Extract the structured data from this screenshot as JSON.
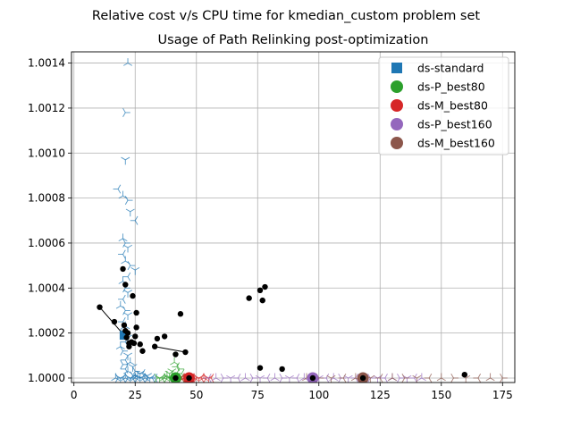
{
  "chart_data": {
    "type": "scatter",
    "title": "Relative cost v/s CPU time for kmedian_custom problem set",
    "subtitle": "Usage of Path Relinking post-optimization",
    "xlabel": "",
    "ylabel": "",
    "xlim": [
      -1,
      180
    ],
    "ylim": [
      0.99998,
      1.00145
    ],
    "xticks": [
      {
        "value": 0,
        "label": "0"
      },
      {
        "value": 25,
        "label": "25"
      },
      {
        "value": 50,
        "label": "50"
      },
      {
        "value": 75,
        "label": "75"
      },
      {
        "value": 100,
        "label": "100"
      },
      {
        "value": 125,
        "label": "125"
      },
      {
        "value": 150,
        "label": "150"
      },
      {
        "value": 175,
        "label": "175"
      }
    ],
    "yticks": [
      {
        "value": 1.0,
        "label": "1.0000"
      },
      {
        "value": 1.0002,
        "label": "1.0002"
      },
      {
        "value": 1.0004,
        "label": "1.0004"
      },
      {
        "value": 1.0006,
        "label": "1.0006"
      },
      {
        "value": 1.0008,
        "label": "1.0008"
      },
      {
        "value": 1.001,
        "label": "1.0010"
      },
      {
        "value": 1.0012,
        "label": "1.0012"
      },
      {
        "value": 1.0014,
        "label": "1.0014"
      }
    ],
    "grid": true,
    "legend_position": "top-right",
    "legend": [
      {
        "name": "ds-standard",
        "color": "#1f77b4",
        "marker": "square"
      },
      {
        "name": "ds-P_best80",
        "color": "#2ca02c",
        "marker": "circle"
      },
      {
        "name": "ds-M_best80",
        "color": "#d62728",
        "marker": "circle"
      },
      {
        "name": "ds-P_best160",
        "color": "#9467bd",
        "marker": "circle"
      },
      {
        "name": "ds-M_best160",
        "color": "#8c564b",
        "marker": "circle"
      }
    ],
    "series": [
      {
        "name": "ds-standard",
        "color": "#1f77b4",
        "marker": "tri",
        "mean": [
          20.5,
          1.00019
        ],
        "points": [
          [
            22,
            1.0014
          ],
          [
            21,
            1.00118
          ],
          [
            21,
            1.00097
          ],
          [
            18,
            1.00084
          ],
          [
            20,
            1.00081
          ],
          [
            22,
            1.00079
          ],
          [
            23,
            1.00074
          ],
          [
            25,
            1.0007
          ],
          [
            20,
            1.00062
          ],
          [
            21,
            1.0006
          ],
          [
            22,
            1.00058
          ],
          [
            20,
            1.00055
          ],
          [
            21,
            1.00052
          ],
          [
            23,
            1.0005
          ],
          [
            25,
            1.00048
          ],
          [
            22,
            1.00045
          ],
          [
            20,
            1.00043
          ],
          [
            21,
            1.0004
          ],
          [
            22,
            1.00038
          ],
          [
            20,
            1.00035
          ],
          [
            19,
            1.00032
          ],
          [
            21,
            1.0003
          ],
          [
            22,
            1.00028
          ],
          [
            20,
            1.00025
          ],
          [
            21,
            1.00023
          ],
          [
            20,
            1.0002
          ],
          [
            22,
            1.00018
          ],
          [
            21,
            1.00016
          ],
          [
            19,
            1.00014
          ],
          [
            20,
            1.00012
          ],
          [
            22,
            1.0001
          ],
          [
            21,
            1.00008
          ],
          [
            23,
            1.00007
          ],
          [
            20,
            1.00006
          ],
          [
            24,
            1.00005
          ],
          [
            21,
            1.00004
          ],
          [
            22,
            1.00003
          ],
          [
            25,
            1.00003
          ],
          [
            27,
            1.00002
          ],
          [
            28,
            1.00002
          ],
          [
            17,
            1.0
          ],
          [
            18,
            1.0
          ],
          [
            19,
            1.0
          ],
          [
            20,
            1.0
          ],
          [
            21,
            1.0
          ],
          [
            22,
            1.0
          ],
          [
            23,
            1.0
          ],
          [
            24,
            1.0
          ],
          [
            25,
            1.0
          ],
          [
            26,
            1.0
          ],
          [
            27,
            1.0
          ],
          [
            28,
            1.0
          ],
          [
            29,
            1.0
          ],
          [
            30,
            1.0
          ],
          [
            31,
            1.0
          ],
          [
            32,
            1.0
          ],
          [
            26,
            1.00001
          ],
          [
            24,
            1.00001
          ],
          [
            30,
            1.00001
          ],
          [
            33,
            1.0
          ]
        ]
      },
      {
        "name": "ds-P_best80",
        "color": "#2ca02c",
        "marker": "tri",
        "mean": [
          41.5,
          1.0
        ],
        "points": [
          [
            34,
            1.0
          ],
          [
            35,
            1.0
          ],
          [
            36,
            1.0
          ],
          [
            37,
            1.0
          ],
          [
            38,
            1.0
          ],
          [
            39,
            1.0
          ],
          [
            40,
            1.0
          ],
          [
            41,
            1.0
          ],
          [
            42,
            1.0
          ],
          [
            43,
            1.0
          ],
          [
            44,
            1.0
          ],
          [
            45,
            1.0
          ],
          [
            46,
            1.0
          ],
          [
            40,
            1.00003
          ],
          [
            42,
            1.00005
          ],
          [
            41,
            1.00007
          ],
          [
            43,
            1.00004
          ],
          [
            39,
            1.00002
          ],
          [
            44,
            1.00002
          ],
          [
            38,
            1.00001
          ]
        ]
      },
      {
        "name": "ds-M_best80",
        "color": "#d62728",
        "marker": "tri",
        "mean": [
          47,
          1.0
        ],
        "points": [
          [
            43,
            1.0
          ],
          [
            44,
            1.0
          ],
          [
            45,
            1.0
          ],
          [
            46,
            1.0
          ],
          [
            47,
            1.0
          ],
          [
            48,
            1.0
          ],
          [
            49,
            1.0
          ],
          [
            50,
            1.0
          ],
          [
            51,
            1.0
          ],
          [
            52,
            1.0
          ],
          [
            53,
            1.0
          ],
          [
            54,
            1.0
          ],
          [
            55,
            1.0
          ],
          [
            56,
            1.0
          ]
        ]
      },
      {
        "name": "ds-P_best160",
        "color": "#9467bd",
        "marker": "tri",
        "mean": [
          97.5,
          1.0
        ],
        "points": [
          [
            55,
            1.0
          ],
          [
            58,
            1.0
          ],
          [
            61,
            1.0
          ],
          [
            64,
            1.0
          ],
          [
            67,
            1.0
          ],
          [
            70,
            1.0
          ],
          [
            73,
            1.0
          ],
          [
            76,
            1.0
          ],
          [
            79,
            1.0
          ],
          [
            82,
            1.0
          ],
          [
            85,
            1.0
          ],
          [
            88,
            1.0
          ],
          [
            91,
            1.0
          ],
          [
            94,
            1.0
          ],
          [
            97,
            1.0
          ],
          [
            100,
            1.0
          ],
          [
            103,
            1.0
          ],
          [
            106,
            1.0
          ],
          [
            109,
            1.0
          ],
          [
            112,
            1.0
          ],
          [
            115,
            1.0
          ],
          [
            118,
            1.0
          ],
          [
            121,
            1.0
          ],
          [
            124,
            1.0
          ],
          [
            127,
            1.0
          ],
          [
            130,
            1.0
          ],
          [
            133,
            1.0
          ],
          [
            136,
            1.0
          ],
          [
            139,
            1.0
          ],
          [
            142,
            1.0
          ]
        ]
      },
      {
        "name": "ds-M_best160",
        "color": "#8c564b",
        "marker": "tri",
        "mean": [
          118,
          1.0
        ],
        "points": [
          [
            95,
            1.0
          ],
          [
            100,
            1.0
          ],
          [
            105,
            1.0
          ],
          [
            110,
            1.0
          ],
          [
            115,
            1.0
          ],
          [
            118,
            1.0
          ],
          [
            121,
            1.0
          ],
          [
            125,
            1.0
          ],
          [
            130,
            1.0
          ],
          [
            135,
            1.0
          ],
          [
            140,
            1.0
          ],
          [
            145,
            1.0
          ],
          [
            150,
            1.0
          ],
          [
            155,
            1.0
          ],
          [
            160,
            1.0
          ],
          [
            165,
            1.0
          ],
          [
            170,
            1.0
          ],
          [
            175,
            1.0
          ]
        ]
      }
    ],
    "black_points": [
      [
        10.5,
        1.000315
      ],
      [
        16.5,
        1.00025
      ],
      [
        20,
        1.000485
      ],
      [
        21,
        1.000415
      ],
      [
        24,
        1.000365
      ],
      [
        25.5,
        1.00029
      ],
      [
        20.5,
        1.000235
      ],
      [
        21,
        1.00021
      ],
      [
        22,
        1.0002
      ],
      [
        21.5,
        1.00018
      ],
      [
        22.5,
        1.000155
      ],
      [
        23.5,
        1.00016
      ],
      [
        25,
        1.000185
      ],
      [
        24.5,
        1.000155
      ],
      [
        22.5,
        1.00014
      ],
      [
        25.5,
        1.000225
      ],
      [
        27,
        1.00015
      ],
      [
        28,
        1.00012
      ],
      [
        34,
        1.000175
      ],
      [
        37,
        1.000185
      ],
      [
        33,
        1.00014
      ],
      [
        43.5,
        1.000285
      ],
      [
        45.5,
        1.000115
      ],
      [
        41.5,
        1.000105
      ],
      [
        71.5,
        1.000355
      ],
      [
        76,
        1.00039
      ],
      [
        78,
        1.000405
      ],
      [
        77,
        1.000345
      ],
      [
        76,
        1.000045
      ],
      [
        85,
        1.00004
      ],
      [
        159.5,
        1.000015
      ],
      [
        41.5,
        1.0
      ],
      [
        47,
        1.0
      ],
      [
        97.5,
        1.0
      ],
      [
        118,
        1.0
      ]
    ],
    "connector_lines": [
      [
        [
          10.5,
          1.000315
        ],
        [
          20.5,
          1.00019
        ]
      ],
      [
        [
          33,
          1.00014
        ],
        [
          45.5,
          1.000115
        ]
      ]
    ]
  }
}
